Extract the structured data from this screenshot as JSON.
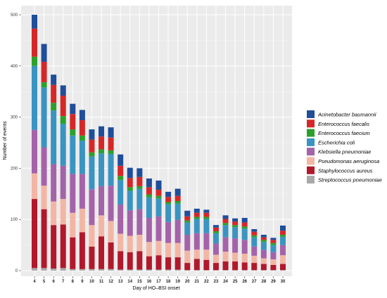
{
  "chart_data": {
    "type": "bar",
    "stacked": true,
    "xlabel": "Day of HO–BSI onset",
    "ylabel": "Number of events",
    "ylim": [
      0,
      510
    ],
    "yticks": [
      0,
      100,
      200,
      300,
      400,
      500
    ],
    "grid": true,
    "legend_position": "right",
    "categories": [
      "4",
      "5",
      "6",
      "7",
      "8",
      "9",
      "10",
      "11",
      "12",
      "13",
      "14",
      "15",
      "16",
      "17",
      "18",
      "19",
      "20",
      "21",
      "22",
      "23",
      "24",
      "25",
      "26",
      "27",
      "28",
      "29",
      "30"
    ],
    "series": [
      {
        "name": "Streptococcus pneumoniae",
        "color": "#a9a9a9",
        "values": [
          5,
          5,
          4,
          5,
          3,
          3,
          3,
          3,
          3,
          2,
          2,
          2,
          2,
          2,
          2,
          2,
          1,
          1,
          1,
          1,
          1,
          1,
          1,
          1,
          1,
          1,
          1
        ]
      },
      {
        "name": "Staphylococcus aureus",
        "color": "#b2182b",
        "values": [
          135,
          115,
          85,
          85,
          62,
          72,
          44,
          64,
          52,
          36,
          34,
          36,
          26,
          28,
          24,
          24,
          14,
          22,
          20,
          14,
          17,
          17,
          15,
          14,
          12,
          10,
          12
        ]
      },
      {
        "name": "Pseudomonas aeruginosa",
        "color": "#f4b6a4",
        "values": [
          50,
          46,
          46,
          50,
          48,
          46,
          42,
          41,
          42,
          34,
          32,
          32,
          28,
          28,
          28,
          28,
          24,
          18,
          20,
          16,
          19,
          17,
          17,
          14,
          11,
          11,
          17
        ]
      },
      {
        "name": "Klebsiella pneumoniae",
        "color": "#a463a9",
        "values": [
          85,
          75,
          73,
          65,
          76,
          68,
          70,
          57,
          69,
          57,
          50,
          50,
          47,
          48,
          41,
          45,
          31,
          32,
          32,
          22,
          28,
          28,
          27,
          18,
          16,
          14,
          20
        ]
      },
      {
        "name": "Escherichia coli",
        "color": "#3a94c1",
        "values": [
          125,
          117,
          105,
          82,
          75,
          65,
          64,
          64,
          62,
          48,
          38,
          40,
          40,
          35,
          35,
          32,
          24,
          28,
          28,
          20,
          24,
          22,
          22,
          18,
          16,
          14,
          16
        ]
      },
      {
        "name": "Enterococcus faecium",
        "color": "#2ca02c",
        "values": [
          18,
          10,
          15,
          15,
          12,
          10,
          8,
          8,
          7,
          8,
          7,
          5,
          6,
          5,
          4,
          5,
          4,
          4,
          4,
          4,
          4,
          4,
          4,
          4,
          4,
          4,
          4
        ]
      },
      {
        "name": "Enterococcus faecalis",
        "color": "#d62728",
        "values": [
          55,
          40,
          35,
          40,
          30,
          30,
          25,
          25,
          25,
          20,
          18,
          18,
          14,
          12,
          10,
          10,
          8,
          8,
          8,
          7,
          8,
          7,
          8,
          7,
          5,
          6,
          8
        ]
      },
      {
        "name": "Acinetobacter baumannii",
        "color": "#1f4e9a",
        "values": [
          27,
          35,
          20,
          20,
          20,
          20,
          20,
          20,
          20,
          22,
          20,
          17,
          17,
          18,
          10,
          14,
          11,
          8,
          6,
          5,
          7,
          6,
          9,
          5,
          5,
          4,
          10
        ]
      }
    ]
  }
}
